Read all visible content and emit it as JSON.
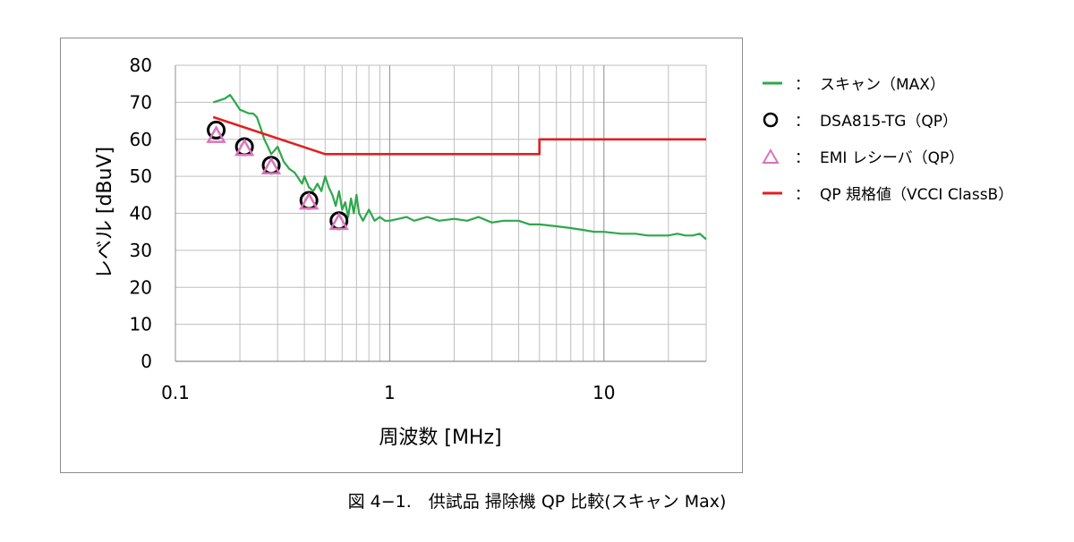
{
  "caption": "図 4−1.　供試品 掃除機 QP 比較(スキャン Max)",
  "chart_data": {
    "type": "line",
    "xscale": "log",
    "xlim": [
      0.1,
      30
    ],
    "ylim": [
      0,
      80
    ],
    "xlabel": "周波数 [MHz]",
    "ylabel": "レベル [dBuV]",
    "x_ticks": [
      {
        "value": 0.1,
        "label": "0.1"
      },
      {
        "value": 1,
        "label": "1"
      },
      {
        "value": 10,
        "label": "10"
      }
    ],
    "y_ticks": [
      0,
      10,
      20,
      30,
      40,
      50,
      60,
      70,
      80
    ],
    "grid": true,
    "legend_position": "right",
    "colors": {
      "scan": "#2ca84a",
      "dsa": "#000000",
      "emi": "#d975b8",
      "limit": "#e02020",
      "grid": "#bfbfbf"
    },
    "series": [
      {
        "key": "scan",
        "name": "スキャン（MAX）",
        "type": "line",
        "x": [
          0.15,
          0.16,
          0.17,
          0.18,
          0.19,
          0.2,
          0.21,
          0.22,
          0.23,
          0.24,
          0.25,
          0.26,
          0.27,
          0.28,
          0.29,
          0.3,
          0.31,
          0.32,
          0.33,
          0.34,
          0.35,
          0.36,
          0.37,
          0.38,
          0.39,
          0.4,
          0.42,
          0.44,
          0.46,
          0.48,
          0.5,
          0.52,
          0.54,
          0.56,
          0.58,
          0.6,
          0.62,
          0.64,
          0.66,
          0.68,
          0.7,
          0.72,
          0.75,
          0.8,
          0.85,
          0.9,
          0.95,
          1.0,
          1.1,
          1.2,
          1.3,
          1.5,
          1.7,
          2.0,
          2.3,
          2.6,
          3.0,
          3.4,
          4.0,
          4.5,
          5.0,
          6.0,
          7.0,
          8.0,
          9.0,
          10,
          12,
          14,
          16,
          18,
          20,
          22,
          24,
          26,
          28,
          30
        ],
        "y": [
          70,
          70.5,
          71,
          72,
          70,
          68,
          67.5,
          67,
          67,
          66,
          63,
          60,
          58,
          56,
          57,
          58,
          56,
          54,
          53,
          52,
          51.5,
          51,
          50,
          49,
          48,
          50,
          47,
          46,
          48,
          46,
          50,
          47,
          45,
          42,
          46,
          41,
          43,
          39,
          44,
          40,
          45,
          40,
          38,
          41,
          38,
          39,
          38,
          38,
          38.5,
          39,
          38,
          39,
          38,
          38.5,
          38,
          39,
          37.5,
          38,
          38,
          37,
          37,
          36.5,
          36,
          35.5,
          35,
          35,
          34.5,
          34.5,
          34,
          34,
          34,
          34.5,
          34,
          34,
          34.5,
          33
        ]
      },
      {
        "key": "dsa",
        "name": "DSA815-TG（QP）",
        "type": "scatter",
        "marker": "circle",
        "x": [
          0.155,
          0.21,
          0.28,
          0.42,
          0.58
        ],
        "y": [
          62.5,
          58,
          53,
          43.5,
          38
        ]
      },
      {
        "key": "emi",
        "name": "EMI レシーバ（QP）",
        "type": "scatter",
        "marker": "triangle",
        "x": [
          0.155,
          0.21,
          0.28,
          0.42,
          0.58
        ],
        "y": [
          61,
          57.5,
          52.5,
          43,
          37.5
        ]
      },
      {
        "key": "limit",
        "name": "QP 規格値（VCCI ClassB）",
        "type": "line",
        "x": [
          0.15,
          0.5,
          5,
          5,
          30
        ],
        "y": [
          66,
          56,
          56,
          60,
          60
        ]
      }
    ]
  },
  "legend": {
    "separator": "：",
    "items": [
      {
        "key": "scan",
        "label": "スキャン（MAX）",
        "icon": "line-swatch"
      },
      {
        "key": "dsa",
        "label": "DSA815-TG（QP）",
        "icon": "circle-marker"
      },
      {
        "key": "emi",
        "label": "EMI レシーバ（QP）",
        "icon": "triangle-marker"
      },
      {
        "key": "limit",
        "label": "QP 規格値（VCCI ClassB）",
        "icon": "line-swatch"
      }
    ]
  }
}
